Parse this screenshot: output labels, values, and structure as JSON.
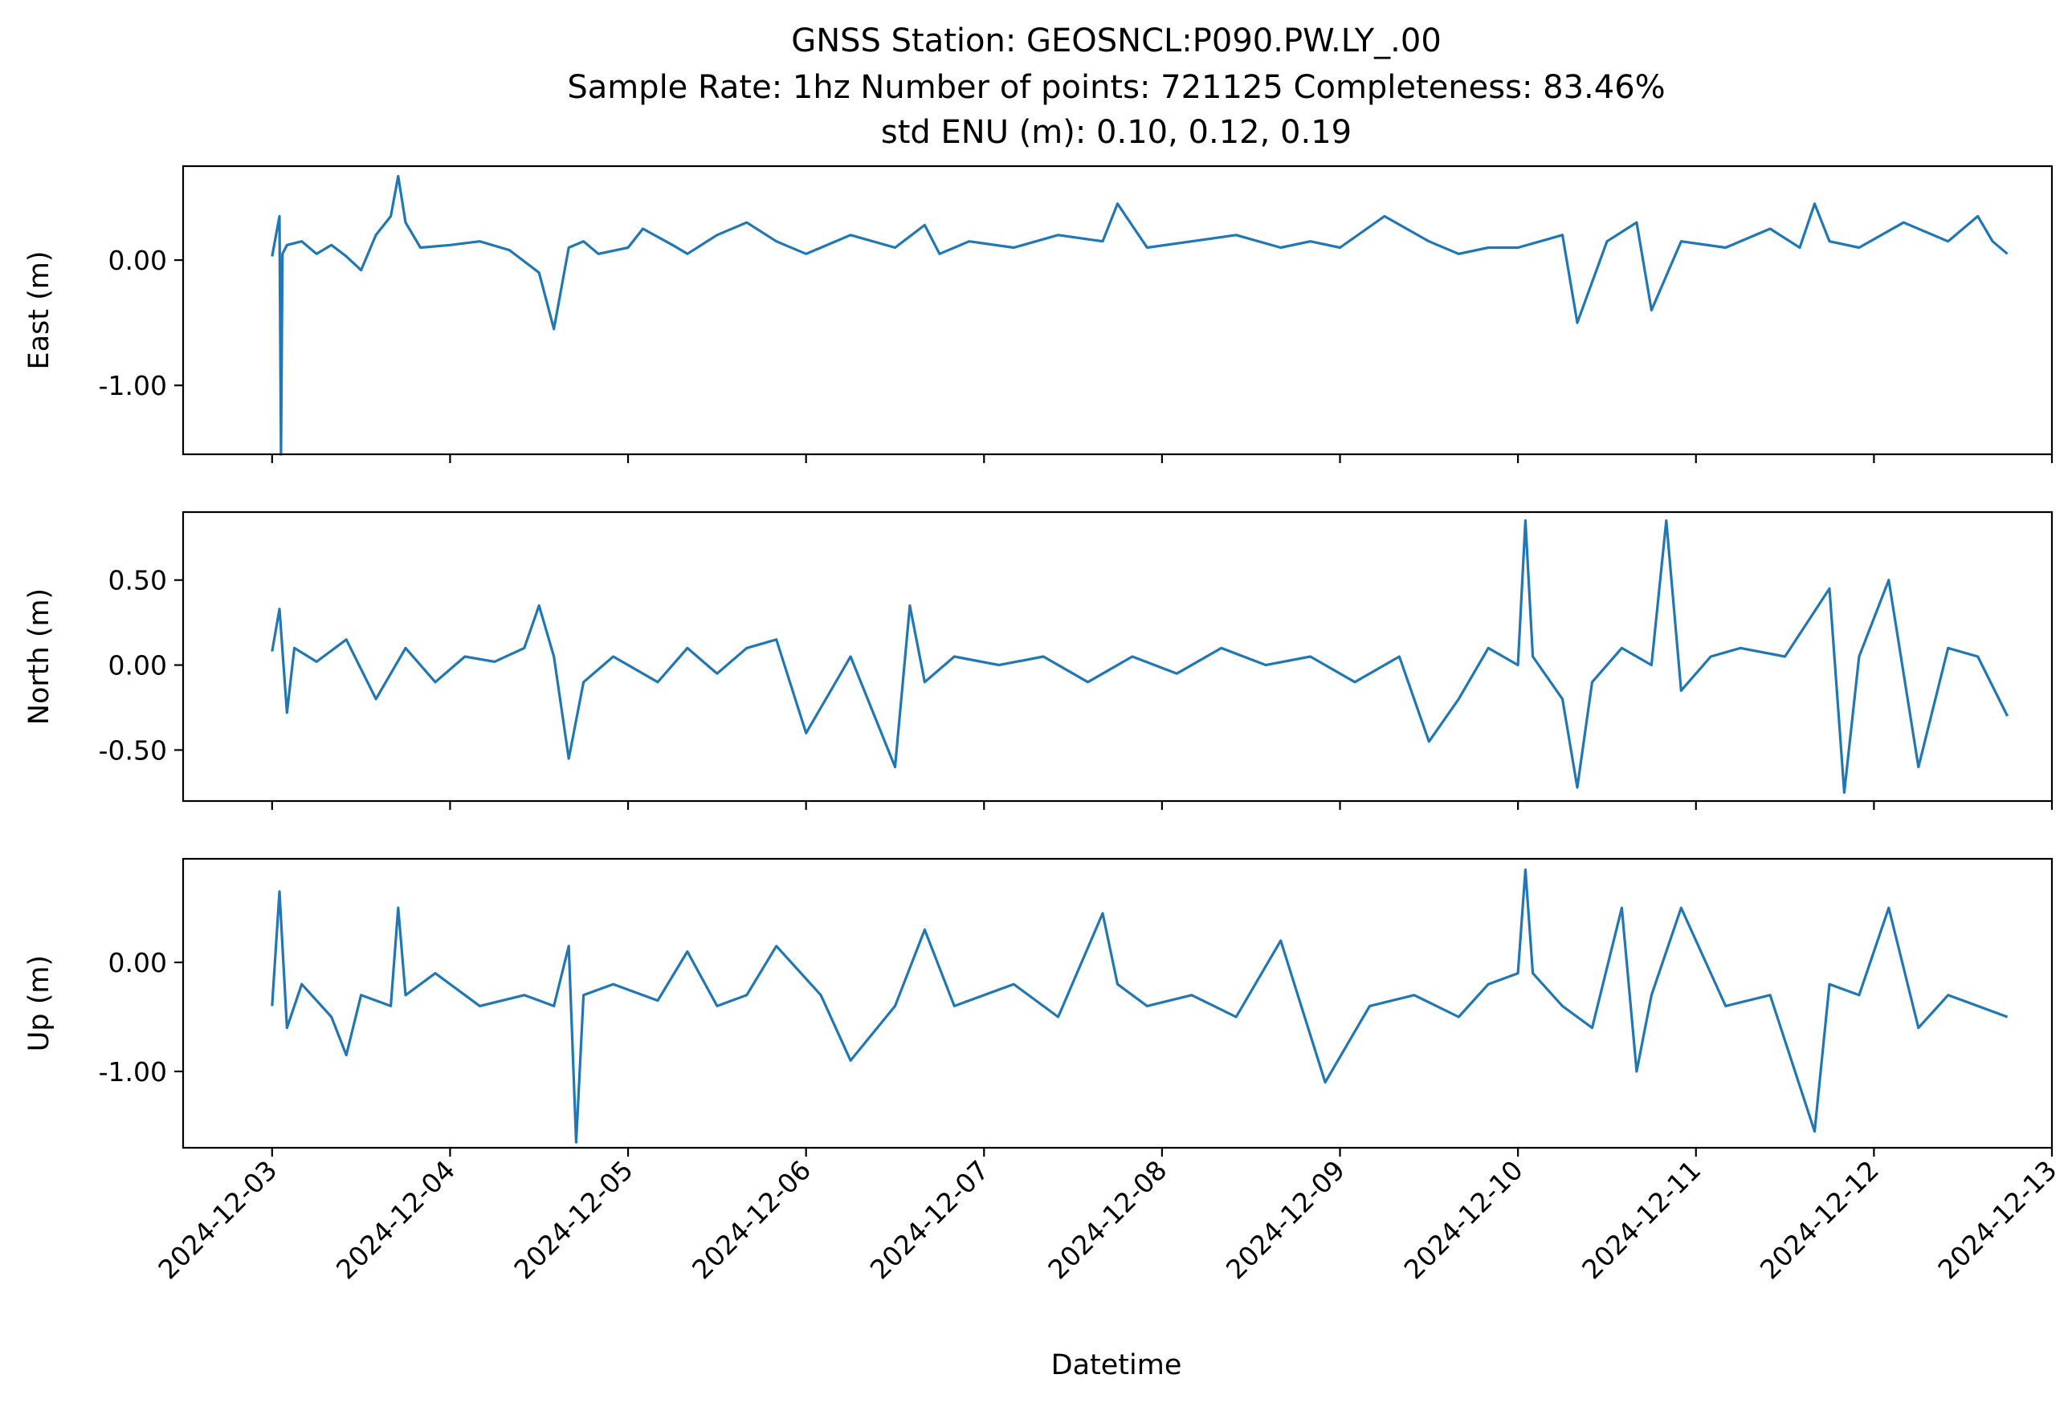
{
  "chart_data": {
    "type": "line",
    "title": [
      "GNSS Station: GEOSNCL:P090.PW.LY_.00",
      "Sample Rate: 1hz   Number of points: 721125    Completeness:  83.46%",
      "std ENU (m):  0.10, 0.12, 0.19"
    ],
    "xlabel": "Datetime",
    "x_tick_labels": [
      "2024-12-03",
      "2024-12-04",
      "2024-12-05",
      "2024-12-06",
      "2024-12-07",
      "2024-12-08",
      "2024-12-09",
      "2024-12-10",
      "2024-12-11",
      "2024-12-12",
      "2024-12-13"
    ],
    "xlim": [
      "2024-12-02T12:00",
      "2024-12-13T00:00"
    ],
    "series_color": "#1f77b4",
    "grid": false,
    "panels": [
      {
        "ylabel": "East (m)",
        "ylim": [
          -1.55,
          0.75
        ],
        "y_ticks": [
          0.0,
          -1.0
        ],
        "y_tick_labels": [
          "0.00",
          "-1.00"
        ],
        "x": [
          "2024-12-03T00:00",
          "2024-12-03T01:00",
          "2024-12-03T01:12",
          "2024-12-03T01:24",
          "2024-12-03T02:00",
          "2024-12-03T04:00",
          "2024-12-03T06:00",
          "2024-12-03T08:00",
          "2024-12-03T10:00",
          "2024-12-03T12:00",
          "2024-12-03T14:00",
          "2024-12-03T16:00",
          "2024-12-03T17:00",
          "2024-12-03T18:00",
          "2024-12-03T20:00",
          "2024-12-04T00:00",
          "2024-12-04T04:00",
          "2024-12-04T08:00",
          "2024-12-04T12:00",
          "2024-12-04T14:00",
          "2024-12-04T16:00",
          "2024-12-04T18:00",
          "2024-12-04T20:00",
          "2024-12-05T00:00",
          "2024-12-05T02:00",
          "2024-12-05T06:00",
          "2024-12-05T08:00",
          "2024-12-05T12:00",
          "2024-12-05T16:00",
          "2024-12-05T20:00",
          "2024-12-06T00:00",
          "2024-12-06T06:00",
          "2024-12-06T12:00",
          "2024-12-06T16:00",
          "2024-12-06T18:00",
          "2024-12-06T22:00",
          "2024-12-07T04:00",
          "2024-12-07T10:00",
          "2024-12-07T16:00",
          "2024-12-07T18:00",
          "2024-12-07T22:00",
          "2024-12-08T04:00",
          "2024-12-08T10:00",
          "2024-12-08T16:00",
          "2024-12-08T20:00",
          "2024-12-09T00:00",
          "2024-12-09T06:00",
          "2024-12-09T12:00",
          "2024-12-09T16:00",
          "2024-12-09T20:00",
          "2024-12-10T00:00",
          "2024-12-10T06:00",
          "2024-12-10T08:00",
          "2024-12-10T12:00",
          "2024-12-10T16:00",
          "2024-12-10T18:00",
          "2024-12-10T22:00",
          "2024-12-11T04:00",
          "2024-12-11T10:00",
          "2024-12-11T14:00",
          "2024-12-11T16:00",
          "2024-12-11T18:00",
          "2024-12-11T22:00",
          "2024-12-12T04:00",
          "2024-12-12T10:00",
          "2024-12-12T14:00",
          "2024-12-12T16:00",
          "2024-12-12T18:00"
        ],
        "values": [
          0.03,
          0.35,
          -1.55,
          0.05,
          0.12,
          0.15,
          0.05,
          0.12,
          0.03,
          -0.08,
          0.2,
          0.35,
          0.67,
          0.3,
          0.1,
          0.12,
          0.15,
          0.08,
          -0.1,
          -0.55,
          0.1,
          0.15,
          0.05,
          0.1,
          0.25,
          0.12,
          0.05,
          0.2,
          0.3,
          0.15,
          0.05,
          0.2,
          0.1,
          0.28,
          0.05,
          0.15,
          0.1,
          0.2,
          0.15,
          0.45,
          0.1,
          0.15,
          0.2,
          0.1,
          0.15,
          0.1,
          0.35,
          0.15,
          0.05,
          0.1,
          0.1,
          0.2,
          -0.5,
          0.15,
          0.3,
          -0.4,
          0.15,
          0.1,
          0.25,
          0.1,
          0.45,
          0.15,
          0.1,
          0.3,
          0.15,
          0.35,
          0.15,
          0.05
        ]
      },
      {
        "ylabel": "North (m)",
        "ylim": [
          -0.8,
          0.9
        ],
        "y_ticks": [
          0.5,
          0.0,
          -0.5
        ],
        "y_tick_labels": [
          "0.50",
          "0.00",
          "-0.50"
        ],
        "x": [
          "2024-12-03T00:00",
          "2024-12-03T01:00",
          "2024-12-03T02:00",
          "2024-12-03T03:00",
          "2024-12-03T06:00",
          "2024-12-03T10:00",
          "2024-12-03T14:00",
          "2024-12-03T18:00",
          "2024-12-03T22:00",
          "2024-12-04T02:00",
          "2024-12-04T06:00",
          "2024-12-04T10:00",
          "2024-12-04T12:00",
          "2024-12-04T14:00",
          "2024-12-04T16:00",
          "2024-12-04T18:00",
          "2024-12-04T22:00",
          "2024-12-05T04:00",
          "2024-12-05T08:00",
          "2024-12-05T12:00",
          "2024-12-05T16:00",
          "2024-12-05T20:00",
          "2024-12-06T00:00",
          "2024-12-06T06:00",
          "2024-12-06T12:00",
          "2024-12-06T14:00",
          "2024-12-06T16:00",
          "2024-12-06T20:00",
          "2024-12-07T02:00",
          "2024-12-07T08:00",
          "2024-12-07T14:00",
          "2024-12-07T20:00",
          "2024-12-08T02:00",
          "2024-12-08T08:00",
          "2024-12-08T14:00",
          "2024-12-08T20:00",
          "2024-12-09T02:00",
          "2024-12-09T08:00",
          "2024-12-09T12:00",
          "2024-12-09T16:00",
          "2024-12-09T20:00",
          "2024-12-10T00:00",
          "2024-12-10T01:00",
          "2024-12-10T02:00",
          "2024-12-10T06:00",
          "2024-12-10T08:00",
          "2024-12-10T10:00",
          "2024-12-10T14:00",
          "2024-12-10T18:00",
          "2024-12-10T20:00",
          "2024-12-10T22:00",
          "2024-12-11T02:00",
          "2024-12-11T06:00",
          "2024-12-11T12:00",
          "2024-12-11T18:00",
          "2024-12-11T20:00",
          "2024-12-11T22:00",
          "2024-12-12T02:00",
          "2024-12-12T06:00",
          "2024-12-12T10:00",
          "2024-12-12T14:00",
          "2024-12-12T18:00"
        ],
        "values": [
          0.08,
          0.33,
          -0.28,
          0.1,
          0.02,
          0.15,
          -0.2,
          0.1,
          -0.1,
          0.05,
          0.02,
          0.1,
          0.35,
          0.05,
          -0.55,
          -0.1,
          0.05,
          -0.1,
          0.1,
          -0.05,
          0.1,
          0.15,
          -0.4,
          0.05,
          -0.6,
          0.35,
          -0.1,
          0.05,
          0.0,
          0.05,
          -0.1,
          0.05,
          -0.05,
          0.1,
          0.0,
          0.05,
          -0.1,
          0.05,
          -0.45,
          -0.2,
          0.1,
          0.0,
          0.85,
          0.05,
          -0.2,
          -0.72,
          -0.1,
          0.1,
          0.0,
          0.85,
          -0.15,
          0.05,
          0.1,
          0.05,
          0.45,
          -0.75,
          0.05,
          0.5,
          -0.6,
          0.1,
          0.05,
          -0.3
        ]
      },
      {
        "ylabel": "Up (m)",
        "ylim": [
          -1.7,
          0.95
        ],
        "y_ticks": [
          0.0,
          -1.0
        ],
        "y_tick_labels": [
          "0.00",
          "-1.00"
        ],
        "x": [
          "2024-12-03T00:00",
          "2024-12-03T01:00",
          "2024-12-03T02:00",
          "2024-12-03T04:00",
          "2024-12-03T08:00",
          "2024-12-03T10:00",
          "2024-12-03T12:00",
          "2024-12-03T16:00",
          "2024-12-03T17:00",
          "2024-12-03T18:00",
          "2024-12-03T22:00",
          "2024-12-04T04:00",
          "2024-12-04T10:00",
          "2024-12-04T14:00",
          "2024-12-04T16:00",
          "2024-12-04T17:00",
          "2024-12-04T18:00",
          "2024-12-04T22:00",
          "2024-12-05T04:00",
          "2024-12-05T08:00",
          "2024-12-05T12:00",
          "2024-12-05T16:00",
          "2024-12-05T20:00",
          "2024-12-06T02:00",
          "2024-12-06T06:00",
          "2024-12-06T12:00",
          "2024-12-06T16:00",
          "2024-12-06T20:00",
          "2024-12-07T04:00",
          "2024-12-07T10:00",
          "2024-12-07T16:00",
          "2024-12-07T18:00",
          "2024-12-07T22:00",
          "2024-12-08T04:00",
          "2024-12-08T10:00",
          "2024-12-08T16:00",
          "2024-12-08T22:00",
          "2024-12-09T04:00",
          "2024-12-09T10:00",
          "2024-12-09T16:00",
          "2024-12-09T20:00",
          "2024-12-10T00:00",
          "2024-12-10T01:00",
          "2024-12-10T02:00",
          "2024-12-10T06:00",
          "2024-12-10T10:00",
          "2024-12-10T14:00",
          "2024-12-10T16:00",
          "2024-12-10T18:00",
          "2024-12-10T22:00",
          "2024-12-11T04:00",
          "2024-12-11T10:00",
          "2024-12-11T16:00",
          "2024-12-11T18:00",
          "2024-12-11T22:00",
          "2024-12-12T02:00",
          "2024-12-12T06:00",
          "2024-12-12T10:00",
          "2024-12-12T14:00",
          "2024-12-12T18:00"
        ],
        "values": [
          -0.4,
          0.65,
          -0.6,
          -0.2,
          -0.5,
          -0.85,
          -0.3,
          -0.4,
          0.5,
          -0.3,
          -0.1,
          -0.4,
          -0.3,
          -0.4,
          0.15,
          -1.65,
          -0.3,
          -0.2,
          -0.35,
          0.1,
          -0.4,
          -0.3,
          0.15,
          -0.3,
          -0.9,
          -0.4,
          0.3,
          -0.4,
          -0.2,
          -0.5,
          0.45,
          -0.2,
          -0.4,
          -0.3,
          -0.5,
          0.2,
          -1.1,
          -0.4,
          -0.3,
          -0.5,
          -0.2,
          -0.1,
          0.85,
          -0.1,
          -0.4,
          -0.6,
          0.5,
          -1.0,
          -0.3,
          0.5,
          -0.4,
          -0.3,
          -1.55,
          -0.2,
          -0.3,
          0.5,
          -0.6,
          -0.3,
          -0.4,
          -0.5
        ]
      }
    ]
  }
}
